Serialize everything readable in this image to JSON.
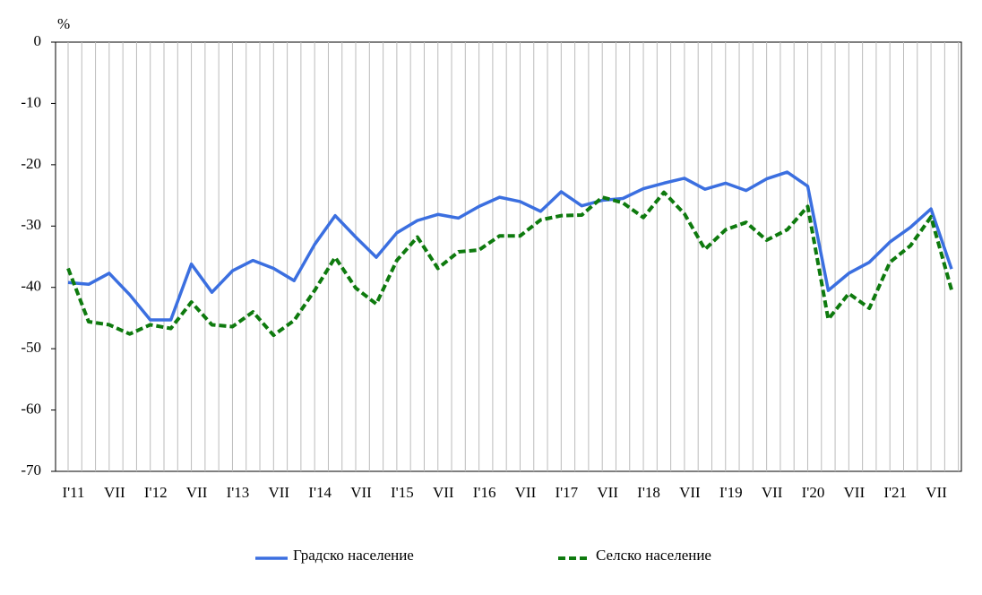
{
  "chart_data": {
    "type": "line",
    "ylabel": "%",
    "categories": [
      "I'11",
      null,
      "VII",
      null,
      "I'12",
      null,
      "VII",
      null,
      "I'13",
      null,
      "VII",
      null,
      "I'14",
      null,
      "VII",
      null,
      "I'15",
      null,
      "VII",
      null,
      "I'16",
      null,
      "VII",
      null,
      "I'17",
      null,
      "VII",
      null,
      "I'18",
      null,
      "VII",
      null,
      "I'19",
      null,
      "VII",
      null,
      "I'20",
      null,
      "VII",
      null,
      "I'21",
      null,
      "VII",
      null
    ],
    "series": [
      {
        "name": "Градско население",
        "color": "#3b6fe0",
        "dashed": false,
        "values": [
          -39.2,
          -39.5,
          -37.7,
          -41.2,
          -45.3,
          -45.3,
          -36.2,
          -40.8,
          -37.3,
          -35.6,
          -36.9,
          -38.9,
          -33,
          -28.3,
          -31.8,
          -35.1,
          -31.1,
          -29.1,
          -28.1,
          -28.7,
          -26.8,
          -25.3,
          -26,
          -27.6,
          -24.4,
          -26.7,
          -25.8,
          -25.5,
          -23.9,
          -23,
          -22.2,
          -24,
          -23,
          -24.2,
          -22.3,
          -21.2,
          -23.5,
          -40.5,
          -37.7,
          -35.9,
          -32.6,
          -30.2,
          -27.2,
          -37
        ]
      },
      {
        "name": "Селско население",
        "color": "#0e7a0e",
        "dashed": true,
        "values": [
          -36.9,
          -45.6,
          -46.1,
          -47.6,
          -46.1,
          -46.7,
          -42.4,
          -46.1,
          -46.4,
          -44,
          -47.8,
          -45.4,
          -40.5,
          -35.1,
          -40.1,
          -42.7,
          -35.6,
          -31.8,
          -36.9,
          -34.2,
          -33.9,
          -31.6,
          -31.6,
          -29,
          -28.3,
          -28.2,
          -25.3,
          -26.2,
          -28.6,
          -24.5,
          -28,
          -33.8,
          -30.6,
          -29.4,
          -32.3,
          -30.6,
          -26.8,
          -45.2,
          -41,
          -43.4,
          -35.9,
          -33.2,
          -28.5,
          -40.4
        ]
      }
    ],
    "ylim": [
      -70,
      0
    ],
    "yticks": [
      0,
      -10,
      -20,
      -30,
      -40,
      -50,
      -60,
      -70
    ],
    "grid": true
  }
}
